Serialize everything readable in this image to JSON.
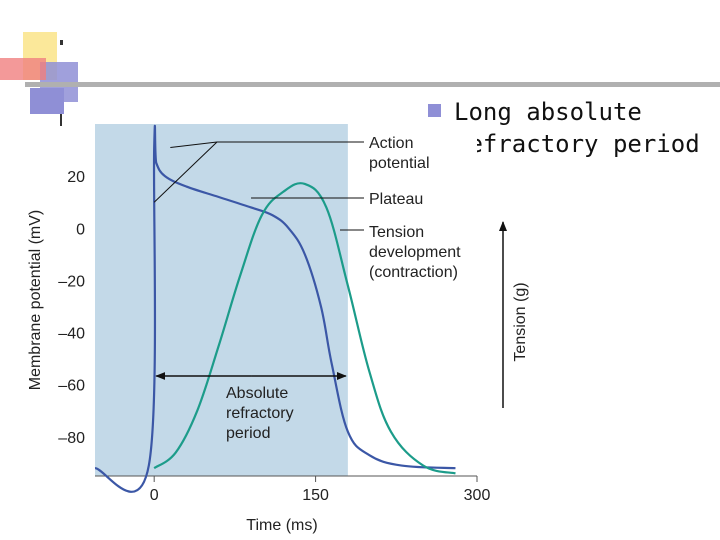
{
  "slide": {
    "bullet": "Long absolute\nrefractory period",
    "colors": {
      "accent_yellow": "#fbe89a",
      "accent_blue": "#8f8fd6",
      "accent_red": "#f08080",
      "title_rule": "#b0b0b0"
    }
  },
  "chart_data": {
    "type": "line",
    "xlabel": "Time (ms)",
    "ylabel": "Membrane potential (mV)",
    "y2label": "Tension (g)",
    "xlim": [
      -55,
      300
    ],
    "ylim": [
      -95,
      40
    ],
    "x_ticks": [
      0,
      150,
      300
    ],
    "x_tick_labels": [
      "0",
      "150",
      "300"
    ],
    "y_ticks": [
      20,
      0,
      -20,
      -40,
      -60,
      -80
    ],
    "y_tick_labels": [
      "20",
      "0",
      "–20",
      "–40",
      "–60",
      "–80"
    ],
    "grid": false,
    "shaded_region": {
      "x_from": -55,
      "x_to": 180,
      "color": "#c3d9e8"
    },
    "series": [
      {
        "key": "action_potential",
        "color": "#3b57a6",
        "x": [
          -55,
          -5,
          0,
          2,
          10,
          30,
          60,
          90,
          110,
          125,
          140,
          155,
          165,
          180,
          200,
          230,
          280
        ],
        "y": [
          -92,
          -91,
          31,
          25,
          20,
          16,
          12,
          8,
          5,
          0,
          -10,
          -30,
          -52,
          -78,
          -87,
          -91,
          -92
        ]
      },
      {
        "key": "tension",
        "color": "#1c9c8a",
        "x": [
          0,
          20,
          40,
          60,
          80,
          100,
          120,
          140,
          160,
          180,
          200,
          220,
          250,
          280
        ],
        "y": [
          -92,
          -86,
          -70,
          -45,
          -18,
          5,
          14,
          17,
          8,
          -22,
          -55,
          -78,
          -91,
          -94
        ]
      }
    ],
    "annotations": [
      {
        "text": "Action\npotential",
        "key": "action_potential_label"
      },
      {
        "text": "Plateau",
        "key": "plateau_label"
      },
      {
        "text": "Tension\ndevelopment\n(contraction)",
        "key": "tension_label"
      },
      {
        "text": "Absolute\nrefractory\nperiod",
        "key": "arp_label"
      }
    ],
    "pointers": {
      "action_potential": [
        [
          0,
          10
        ],
        [
          15,
          31
        ]
      ],
      "plateau": [
        [
          90,
          11
        ]
      ],
      "tension": [
        [
          150,
          5
        ]
      ],
      "arp_arrow": [
        0,
        180
      ]
    }
  }
}
